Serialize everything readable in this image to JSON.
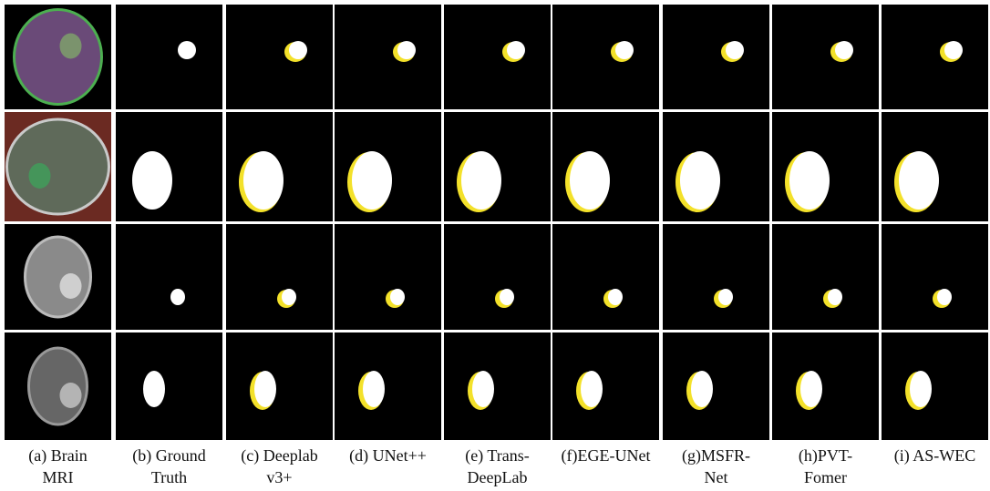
{
  "figure": {
    "captions": [
      [
        "(a) Brain",
        "MRI"
      ],
      [
        "(b) Ground",
        "Truth"
      ],
      [
        "(c) Deeplab",
        "v3+"
      ],
      [
        "(d) UNet++"
      ],
      [
        "(e) Trans-",
        "DeepLab"
      ],
      [
        "(f)EGE-UNet"
      ],
      [
        "(g)MSFR-",
        "Net"
      ],
      [
        "(h)PVT-",
        "Fomer"
      ],
      [
        "(i) AS-WEC"
      ]
    ]
  }
}
